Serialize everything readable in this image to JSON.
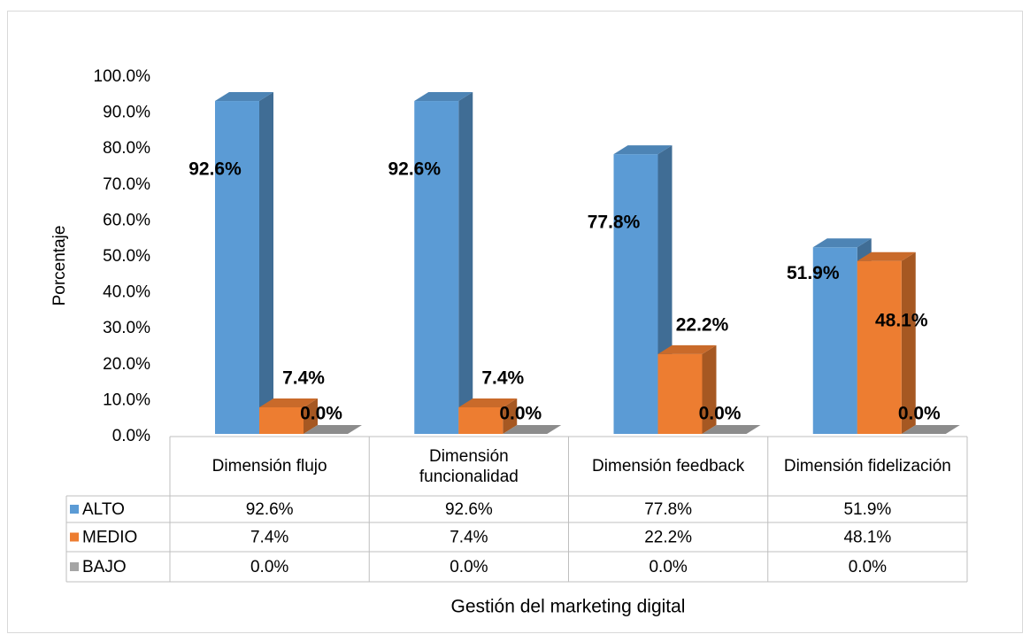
{
  "chart_data": {
    "type": "bar3d",
    "x_label": "Gestión del marketing digital",
    "y_label": "Porcentaje",
    "categories": [
      "Dimensión flujo",
      "Dimensión funcionalidad",
      "Dimensión feedback",
      "Dimensión fidelización"
    ],
    "series": [
      {
        "name": "ALTO",
        "color": "#5b9bd5",
        "values": [
          92.6,
          92.6,
          77.8,
          51.9
        ],
        "value_labels": [
          "92.6%",
          "92.6%",
          "77.8%",
          "51.9%"
        ]
      },
      {
        "name": "MEDIO",
        "color": "#ed7d31",
        "values": [
          7.4,
          7.4,
          22.2,
          48.1
        ],
        "value_labels": [
          "7.4%",
          "7.4%",
          "22.2%",
          "48.1%"
        ]
      },
      {
        "name": "BAJO",
        "color": "#a5a5a5",
        "values": [
          0,
          0,
          0,
          0
        ],
        "value_labels": [
          "0.0%",
          "0.0%",
          "0.0%",
          "0.0%"
        ]
      }
    ],
    "ylim": [
      0,
      100
    ],
    "yticks": [
      {
        "value": 0,
        "label": "0.0%"
      },
      {
        "value": 10,
        "label": "10.0%"
      },
      {
        "value": 20,
        "label": "20.0%"
      },
      {
        "value": 30,
        "label": "30.0%"
      },
      {
        "value": 40,
        "label": "40.0%"
      },
      {
        "value": 50,
        "label": "50.0%"
      },
      {
        "value": 60,
        "label": "60.0%"
      },
      {
        "value": 70,
        "label": "70.0%"
      },
      {
        "value": 80,
        "label": "80.0%"
      },
      {
        "value": 90,
        "label": "90.0%"
      },
      {
        "value": 100,
        "label": "100.0%"
      }
    ],
    "grid": false,
    "data_table": true
  }
}
